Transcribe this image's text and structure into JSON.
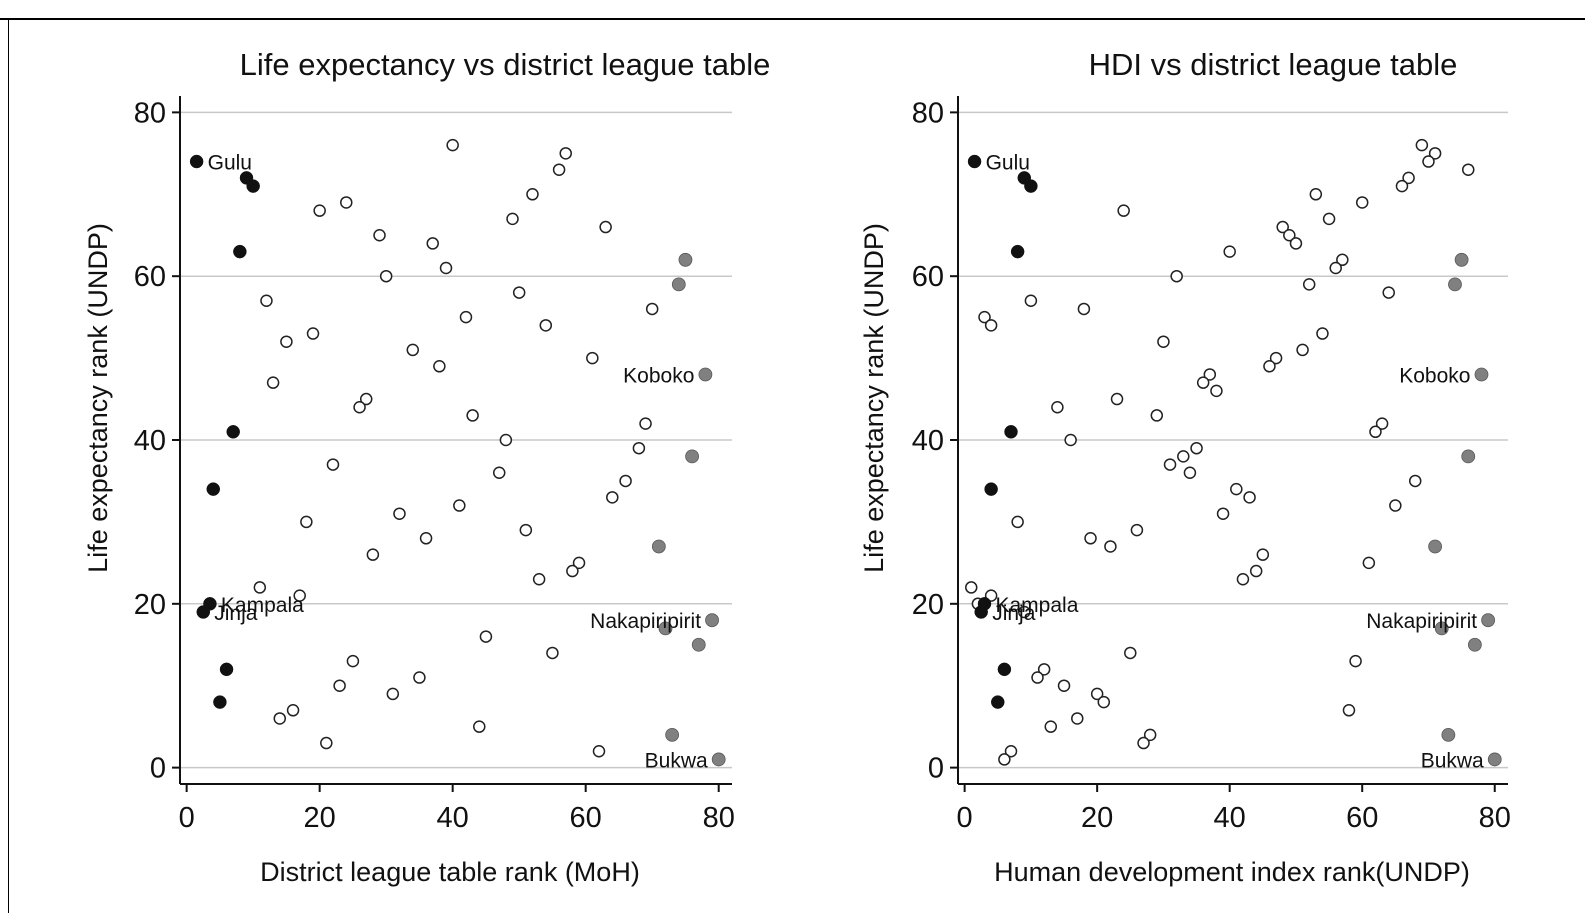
{
  "colors": {
    "dark": "#111111",
    "grey": "#808080",
    "hollow_fill": "#ffffff",
    "hollow_stroke": "#222222",
    "grid": "#c8c8c8"
  },
  "chart_data": [
    {
      "type": "scatter",
      "title": "Life expectancy vs district league table",
      "xlabel": "District league table rank (MoH)",
      "ylabel": "Life expectancy rank (UNDP)",
      "xlim": [
        -1,
        82
      ],
      "ylim": [
        -2,
        82
      ],
      "xticks": [
        0,
        20,
        40,
        60,
        80
      ],
      "yticks": [
        0,
        20,
        40,
        60,
        80
      ],
      "grid": "horizontal",
      "series": [
        {
          "style": "dark",
          "points": [
            [
              1.5,
              74
            ],
            [
              9,
              72
            ],
            [
              10,
              71
            ],
            [
              8,
              63
            ],
            [
              7,
              41
            ],
            [
              4,
              34
            ],
            [
              3.5,
              20
            ],
            [
              2.5,
              19
            ],
            [
              6,
              12
            ],
            [
              5,
              8
            ]
          ]
        },
        {
          "style": "grey",
          "points": [
            [
              75,
              62
            ],
            [
              74,
              59
            ],
            [
              78,
              48
            ],
            [
              76,
              38
            ],
            [
              71,
              27
            ],
            [
              72,
              17
            ],
            [
              79,
              18
            ],
            [
              77,
              15
            ],
            [
              73,
              4
            ],
            [
              80,
              1
            ]
          ]
        },
        {
          "style": "hollow",
          "points": [
            [
              40,
              76
            ],
            [
              57,
              75
            ],
            [
              56,
              73
            ],
            [
              52,
              70
            ],
            [
              24,
              69
            ],
            [
              20,
              68
            ],
            [
              49,
              67
            ],
            [
              63,
              66
            ],
            [
              29,
              65
            ],
            [
              37,
              64
            ],
            [
              39,
              61
            ],
            [
              30,
              60
            ],
            [
              50,
              58
            ],
            [
              12,
              57
            ],
            [
              70,
              56
            ],
            [
              42,
              55
            ],
            [
              54,
              54
            ],
            [
              19,
              53
            ],
            [
              15,
              52
            ],
            [
              34,
              51
            ],
            [
              61,
              50
            ],
            [
              38,
              49
            ],
            [
              13,
              47
            ],
            [
              27,
              45
            ],
            [
              26,
              44
            ],
            [
              43,
              43
            ],
            [
              69,
              42
            ],
            [
              48,
              40
            ],
            [
              68,
              39
            ],
            [
              22,
              37
            ],
            [
              47,
              36
            ],
            [
              66,
              35
            ],
            [
              64,
              33
            ],
            [
              41,
              32
            ],
            [
              32,
              31
            ],
            [
              18,
              30
            ],
            [
              51,
              29
            ],
            [
              36,
              28
            ],
            [
              28,
              26
            ],
            [
              59,
              25
            ],
            [
              58,
              24
            ],
            [
              53,
              23
            ],
            [
              11,
              22
            ],
            [
              17,
              21
            ],
            [
              45,
              16
            ],
            [
              55,
              14
            ],
            [
              25,
              13
            ],
            [
              35,
              11
            ],
            [
              23,
              10
            ],
            [
              31,
              9
            ],
            [
              16,
              7
            ],
            [
              14,
              6
            ],
            [
              44,
              5
            ],
            [
              21,
              3
            ],
            [
              62,
              2
            ]
          ]
        }
      ],
      "annotations": [
        {
          "text": "Gulu",
          "x": 1.5,
          "y": 74,
          "side": "right"
        },
        {
          "text": "Kampala",
          "x": 3.5,
          "y": 20,
          "side": "right"
        },
        {
          "text": "Jinja",
          "x": 2.5,
          "y": 19,
          "side": "right"
        },
        {
          "text": "Koboko",
          "x": 78,
          "y": 48,
          "side": "left"
        },
        {
          "text": "Nakapiripirit",
          "x": 79,
          "y": 18,
          "side": "left"
        },
        {
          "text": "Bukwa",
          "x": 80,
          "y": 1,
          "side": "left"
        }
      ]
    },
    {
      "type": "scatter",
      "title": "HDI vs district league table",
      "xlabel": "Human development index rank(UNDP)",
      "ylabel": "Life expectancy rank (UNDP)",
      "xlim": [
        -1,
        82
      ],
      "ylim": [
        -2,
        82
      ],
      "xticks": [
        0,
        20,
        40,
        60,
        80
      ],
      "yticks": [
        0,
        20,
        40,
        60,
        80
      ],
      "grid": "horizontal",
      "series": [
        {
          "style": "dark",
          "points": [
            [
              1.5,
              74
            ],
            [
              9,
              72
            ],
            [
              10,
              71
            ],
            [
              8,
              63
            ],
            [
              7,
              41
            ],
            [
              4,
              34
            ],
            [
              3,
              20
            ],
            [
              2.5,
              19
            ],
            [
              6,
              12
            ],
            [
              5,
              8
            ]
          ]
        },
        {
          "style": "grey",
          "points": [
            [
              75,
              62
            ],
            [
              74,
              59
            ],
            [
              78,
              48
            ],
            [
              76,
              38
            ],
            [
              71,
              27
            ],
            [
              72,
              17
            ],
            [
              79,
              18
            ],
            [
              77,
              15
            ],
            [
              73,
              4
            ],
            [
              80,
              1
            ]
          ]
        },
        {
          "style": "hollow",
          "points": [
            [
              69,
              76
            ],
            [
              71,
              75
            ],
            [
              70,
              74
            ],
            [
              76,
              73
            ],
            [
              67,
              72
            ],
            [
              66,
              71
            ],
            [
              53,
              70
            ],
            [
              60,
              69
            ],
            [
              24,
              68
            ],
            [
              55,
              67
            ],
            [
              48,
              66
            ],
            [
              49,
              65
            ],
            [
              50,
              64
            ],
            [
              40,
              63
            ],
            [
              57,
              62
            ],
            [
              56,
              61
            ],
            [
              32,
              60
            ],
            [
              52,
              59
            ],
            [
              64,
              58
            ],
            [
              10,
              57
            ],
            [
              18,
              56
            ],
            [
              3,
              55
            ],
            [
              4,
              54
            ],
            [
              54,
              53
            ],
            [
              30,
              52
            ],
            [
              51,
              51
            ],
            [
              47,
              50
            ],
            [
              46,
              49
            ],
            [
              37,
              48
            ],
            [
              36,
              47
            ],
            [
              38,
              46
            ],
            [
              23,
              45
            ],
            [
              14,
              44
            ],
            [
              29,
              43
            ],
            [
              63,
              42
            ],
            [
              62,
              41
            ],
            [
              16,
              40
            ],
            [
              35,
              39
            ],
            [
              33,
              38
            ],
            [
              31,
              37
            ],
            [
              34,
              36
            ],
            [
              68,
              35
            ],
            [
              41,
              34
            ],
            [
              43,
              33
            ],
            [
              65,
              32
            ],
            [
              39,
              31
            ],
            [
              8,
              30
            ],
            [
              26,
              29
            ],
            [
              19,
              28
            ],
            [
              22,
              27
            ],
            [
              45,
              26
            ],
            [
              61,
              25
            ],
            [
              44,
              24
            ],
            [
              42,
              23
            ],
            [
              1,
              22
            ],
            [
              4,
              21
            ],
            [
              2,
              20
            ],
            [
              9,
              19
            ],
            [
              25,
              14
            ],
            [
              59,
              13
            ],
            [
              12,
              12
            ],
            [
              11,
              11
            ],
            [
              15,
              10
            ],
            [
              20,
              9
            ],
            [
              21,
              8
            ],
            [
              58,
              7
            ],
            [
              17,
              6
            ],
            [
              13,
              5
            ],
            [
              28,
              4
            ],
            [
              27,
              3
            ],
            [
              7,
              2
            ],
            [
              6,
              1
            ]
          ]
        }
      ],
      "annotations": [
        {
          "text": "Gulu",
          "x": 1.5,
          "y": 74,
          "side": "right"
        },
        {
          "text": "Kampala",
          "x": 3,
          "y": 20,
          "side": "right"
        },
        {
          "text": "Jinja",
          "x": 2.5,
          "y": 19,
          "side": "right"
        },
        {
          "text": "Koboko",
          "x": 78,
          "y": 48,
          "side": "left"
        },
        {
          "text": "Nakapiripirit",
          "x": 79,
          "y": 18,
          "side": "left"
        },
        {
          "text": "Bukwa",
          "x": 80,
          "y": 1,
          "side": "left"
        }
      ]
    }
  ]
}
